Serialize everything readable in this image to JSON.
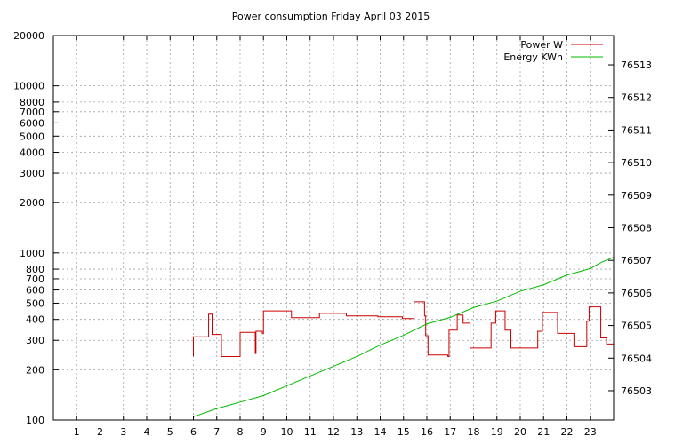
{
  "chart_data": {
    "type": "line",
    "title": "Power consumption Friday April 03 2015",
    "xlabel": "",
    "ylabel": "",
    "y2label": "",
    "xlim": [
      0,
      24
    ],
    "ylim": [
      100,
      20000
    ],
    "y_scale": "log",
    "y2lim": [
      76502.1,
      76513.9
    ],
    "x_ticks": [
      1,
      2,
      3,
      4,
      5,
      6,
      7,
      8,
      9,
      10,
      11,
      12,
      13,
      14,
      15,
      16,
      17,
      18,
      19,
      20,
      21,
      22,
      23
    ],
    "y_ticks": [
      100,
      200,
      300,
      400,
      500,
      600,
      700,
      800,
      1000,
      2000,
      3000,
      4000,
      5000,
      6000,
      7000,
      8000,
      10000,
      20000
    ],
    "y_tick_labels": [
      "100",
      "200",
      "300",
      "400",
      "500",
      "600",
      "700",
      "800",
      "1000",
      "2000",
      "3000",
      "4000",
      "5000",
      "6000",
      "7000",
      "8000",
      "10000",
      "20000"
    ],
    "y2_ticks": [
      76503,
      76504,
      76505,
      76506,
      76507,
      76508,
      76509,
      76510,
      76511,
      76512,
      76513
    ],
    "grid": true,
    "legend_position": "top-right",
    "series": [
      {
        "name": "Power W",
        "axis": "left",
        "color": "#cc0000",
        "step": true,
        "points": [
          [
            6.0,
            240
          ],
          [
            6.0,
            315
          ],
          [
            6.65,
            315
          ],
          [
            6.65,
            430
          ],
          [
            6.8,
            430
          ],
          [
            6.8,
            325
          ],
          [
            7.2,
            325
          ],
          [
            7.2,
            240
          ],
          [
            8.0,
            240
          ],
          [
            8.0,
            335
          ],
          [
            8.65,
            335
          ],
          [
            8.65,
            250
          ],
          [
            8.68,
            250
          ],
          [
            8.68,
            340
          ],
          [
            8.95,
            340
          ],
          [
            8.95,
            330
          ],
          [
            9.0,
            330
          ],
          [
            9.0,
            450
          ],
          [
            10.2,
            450
          ],
          [
            10.2,
            410
          ],
          [
            11.4,
            410
          ],
          [
            11.4,
            435
          ],
          [
            12.55,
            435
          ],
          [
            12.55,
            420
          ],
          [
            13.9,
            420
          ],
          [
            13.9,
            415
          ],
          [
            14.95,
            415
          ],
          [
            14.95,
            405
          ],
          [
            15.45,
            405
          ],
          [
            15.45,
            510
          ],
          [
            15.9,
            510
          ],
          [
            15.9,
            420
          ],
          [
            15.95,
            420
          ],
          [
            15.95,
            320
          ],
          [
            16.05,
            320
          ],
          [
            16.05,
            245
          ],
          [
            16.9,
            245
          ],
          [
            16.9,
            240
          ],
          [
            16.95,
            240
          ],
          [
            16.95,
            345
          ],
          [
            17.3,
            345
          ],
          [
            17.3,
            425
          ],
          [
            17.55,
            425
          ],
          [
            17.55,
            380
          ],
          [
            17.85,
            380
          ],
          [
            17.85,
            270
          ],
          [
            18.75,
            270
          ],
          [
            18.75,
            380
          ],
          [
            18.95,
            380
          ],
          [
            18.95,
            450
          ],
          [
            19.35,
            450
          ],
          [
            19.35,
            345
          ],
          [
            19.6,
            345
          ],
          [
            19.6,
            270
          ],
          [
            20.75,
            270
          ],
          [
            20.75,
            340
          ],
          [
            20.95,
            340
          ],
          [
            20.95,
            440
          ],
          [
            21.6,
            440
          ],
          [
            21.6,
            330
          ],
          [
            22.3,
            330
          ],
          [
            22.3,
            275
          ],
          [
            22.85,
            275
          ],
          [
            22.85,
            390
          ],
          [
            22.95,
            390
          ],
          [
            22.95,
            475
          ],
          [
            23.45,
            475
          ],
          [
            23.45,
            310
          ],
          [
            23.7,
            310
          ],
          [
            23.7,
            285
          ],
          [
            24.0,
            285
          ]
        ]
      },
      {
        "name": "Energy KWh",
        "axis": "right",
        "color": "#00bb00",
        "step": false,
        "points": [
          [
            6.0,
            76502.2
          ],
          [
            7.0,
            76502.45
          ],
          [
            8.0,
            76502.65
          ],
          [
            9.0,
            76502.85
          ],
          [
            10.0,
            76503.15
          ],
          [
            11.0,
            76503.45
          ],
          [
            12.0,
            76503.75
          ],
          [
            13.0,
            76504.05
          ],
          [
            14.0,
            76504.4
          ],
          [
            15.0,
            76504.7
          ],
          [
            16.0,
            76505.05
          ],
          [
            17.0,
            76505.25
          ],
          [
            18.0,
            76505.55
          ],
          [
            19.0,
            76505.75
          ],
          [
            20.0,
            76506.05
          ],
          [
            21.0,
            76506.25
          ],
          [
            22.0,
            76506.55
          ],
          [
            23.0,
            76506.75
          ],
          [
            23.5,
            76506.95
          ],
          [
            24.0,
            76507.1
          ]
        ]
      }
    ]
  }
}
